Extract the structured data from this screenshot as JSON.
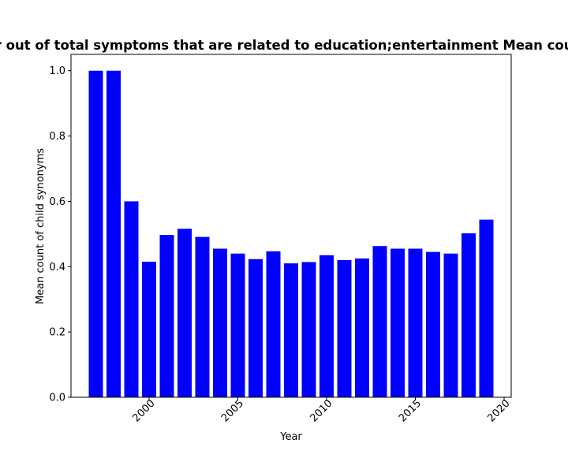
{
  "chart_data": {
    "type": "bar",
    "title": "Fraction of private symptoms in a year out of total symptoms that are related to education;entertainment Mean count of child synonyms in private sector",
    "xlabel": "Year",
    "ylabel": "Mean count of child synonyms",
    "x": [
      1997,
      1998,
      1999,
      2000,
      2001,
      2002,
      2003,
      2004,
      2005,
      2006,
      2007,
      2008,
      2009,
      2010,
      2011,
      2012,
      2013,
      2014,
      2015,
      2016,
      2017,
      2018,
      2019
    ],
    "values": [
      1.0,
      1.0,
      0.6,
      0.415,
      0.497,
      0.516,
      0.491,
      0.455,
      0.44,
      0.423,
      0.447,
      0.41,
      0.414,
      0.435,
      0.42,
      0.425,
      0.463,
      0.455,
      0.455,
      0.445,
      0.44,
      0.502,
      0.544
    ],
    "xlim": [
      1995.6,
      2020.4
    ],
    "ylim": [
      0,
      1.05
    ],
    "xticks": [
      "2000",
      "2005",
      "2010",
      "2015",
      "2020"
    ],
    "yticks": [
      "0.0",
      "0.2",
      "0.4",
      "0.6",
      "0.8",
      "1.0"
    ],
    "bar_color": "#0000ff",
    "grid": false,
    "legend": "none"
  }
}
